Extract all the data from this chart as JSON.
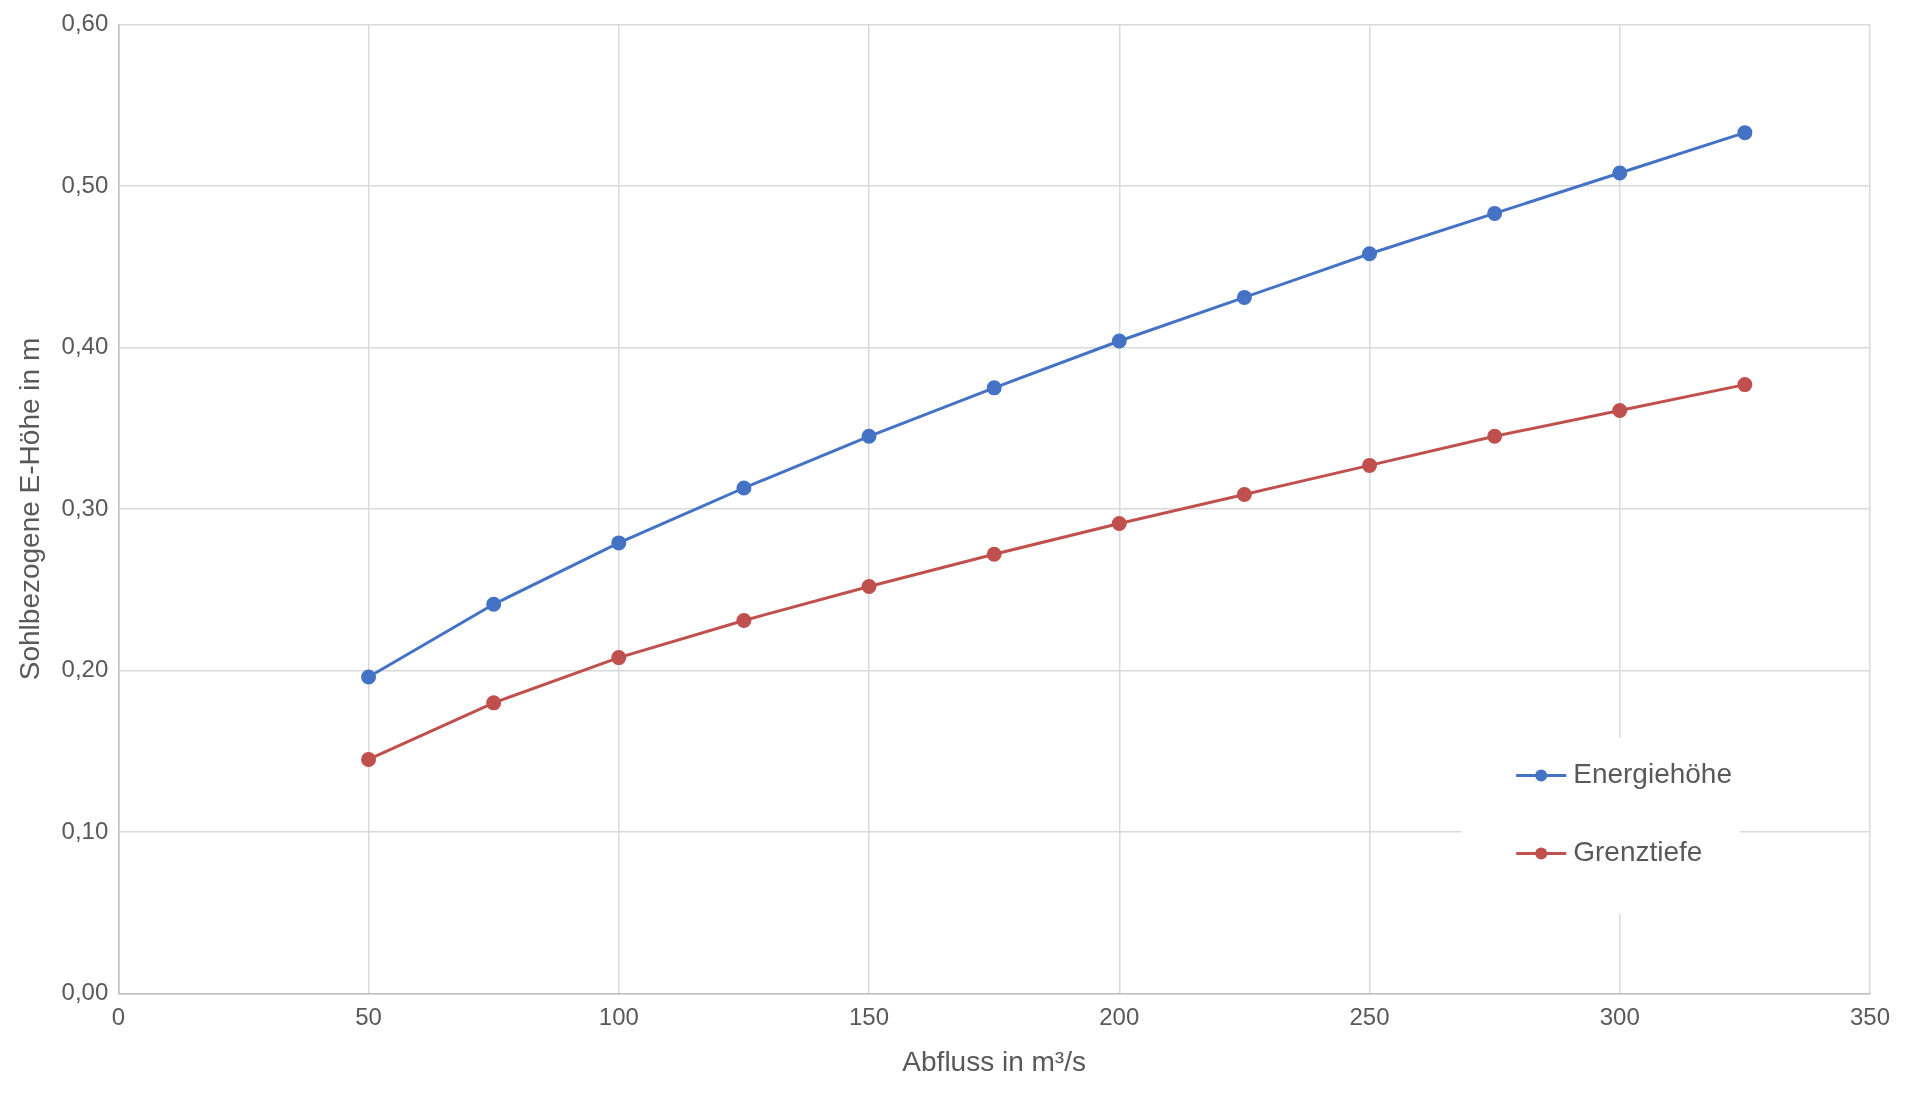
{
  "chart_data": {
    "type": "line",
    "xlabel": "Abfluss in m³/s",
    "ylabel": "Sohlbezogene E-Höhe in m",
    "x": [
      50,
      75,
      100,
      125,
      150,
      175,
      200,
      225,
      250,
      275,
      300,
      325
    ],
    "series": [
      {
        "name": "Energiehöhe",
        "color": "#4472c4",
        "values": [
          0.196,
          0.241,
          0.279,
          0.313,
          0.345,
          0.375,
          0.404,
          0.431,
          0.458,
          0.483,
          0.508,
          0.533
        ]
      },
      {
        "name": "Grenztiefe",
        "color": "#c0504d",
        "values": [
          0.145,
          0.18,
          0.208,
          0.231,
          0.252,
          0.272,
          0.291,
          0.309,
          0.327,
          0.345,
          0.361,
          0.377
        ]
      }
    ],
    "xlim": [
      0,
      350
    ],
    "xticks": [
      0,
      50,
      100,
      150,
      200,
      250,
      300,
      350
    ],
    "ylim": [
      0,
      0.6
    ],
    "yticks": [
      {
        "value": 0,
        "label": "0,00"
      },
      {
        "value": 0.1,
        "label": "0,10"
      },
      {
        "value": 0.2,
        "label": "0,20"
      },
      {
        "value": 0.3,
        "label": "0,30"
      },
      {
        "value": 0.4,
        "label": "0,40"
      },
      {
        "value": 0.5,
        "label": "0,50"
      },
      {
        "value": 0.6,
        "label": "0,60"
      }
    ],
    "grid": true,
    "legend": "bottom right",
    "marker": "circle",
    "line_style": "solid"
  }
}
